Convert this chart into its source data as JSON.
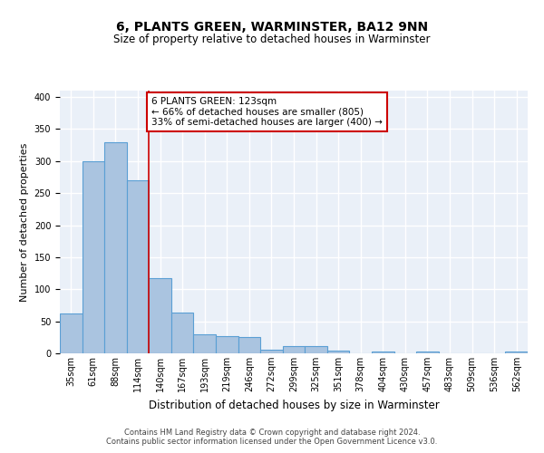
{
  "title": "6, PLANTS GREEN, WARMINSTER, BA12 9NN",
  "subtitle": "Size of property relative to detached houses in Warminster",
  "xlabel": "Distribution of detached houses by size in Warminster",
  "ylabel": "Number of detached properties",
  "categories": [
    "35sqm",
    "61sqm",
    "88sqm",
    "114sqm",
    "140sqm",
    "167sqm",
    "193sqm",
    "219sqm",
    "246sqm",
    "272sqm",
    "299sqm",
    "325sqm",
    "351sqm",
    "378sqm",
    "404sqm",
    "430sqm",
    "457sqm",
    "483sqm",
    "509sqm",
    "536sqm",
    "562sqm"
  ],
  "values": [
    62,
    300,
    330,
    270,
    118,
    63,
    29,
    27,
    25,
    6,
    12,
    11,
    4,
    0,
    3,
    0,
    3,
    0,
    0,
    0,
    3
  ],
  "bar_color": "#aac4e0",
  "bar_edge_color": "#5a9fd4",
  "annotation_text": "6 PLANTS GREEN: 123sqm\n← 66% of detached houses are smaller (805)\n33% of semi-detached houses are larger (400) →",
  "annotation_box_color": "#ffffff",
  "annotation_box_edge": "#cc0000",
  "red_line_x": 3,
  "ylim": [
    0,
    410
  ],
  "yticks": [
    0,
    50,
    100,
    150,
    200,
    250,
    300,
    350,
    400
  ],
  "background_color": "#eaf0f8",
  "grid_color": "#ffffff",
  "title_fontsize": 10,
  "subtitle_fontsize": 8.5,
  "ylabel_fontsize": 8,
  "xlabel_fontsize": 8.5,
  "tick_fontsize": 7,
  "ann_fontsize": 7.5,
  "footer_line1": "Contains HM Land Registry data © Crown copyright and database right 2024.",
  "footer_line2": "Contains public sector information licensed under the Open Government Licence v3.0.",
  "footer_fontsize": 6
}
